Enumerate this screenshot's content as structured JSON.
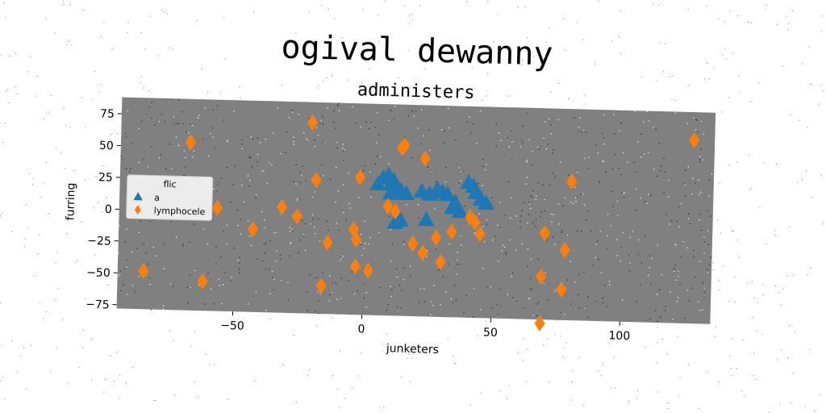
{
  "chart_data": {
    "type": "scatter",
    "title": "ogival dewanny",
    "subtitle": "administers",
    "xlabel": "junketers",
    "ylabel": "furring",
    "xlim": [
      -95,
      135
    ],
    "ylim": [
      -78,
      88
    ],
    "xticks": [
      -50,
      0,
      50,
      100
    ],
    "yticks": [
      -75,
      -50,
      -25,
      0,
      25,
      50,
      75
    ],
    "grid": false,
    "plot_background": "#808080",
    "legend": {
      "title": "flic",
      "placement": "center-left"
    },
    "series": [
      {
        "name": "a",
        "marker": "triangle",
        "color": "#1f77b4",
        "points": [
          [
            5,
            25
          ],
          [
            7,
            30
          ],
          [
            9,
            32
          ],
          [
            10,
            25
          ],
          [
            11,
            28
          ],
          [
            12,
            22
          ],
          [
            14,
            20
          ],
          [
            16,
            18
          ],
          [
            10,
            18
          ],
          [
            12,
            -5
          ],
          [
            14,
            -3
          ],
          [
            22,
            20
          ],
          [
            25,
            18
          ],
          [
            28,
            22
          ],
          [
            30,
            20
          ],
          [
            32,
            18
          ],
          [
            35,
            12
          ],
          [
            37,
            5
          ],
          [
            40,
            28
          ],
          [
            42,
            25
          ],
          [
            43,
            20
          ],
          [
            45,
            15
          ],
          [
            47,
            12
          ],
          [
            24,
            -2
          ],
          [
            34,
            8
          ]
        ]
      },
      {
        "name": "lymphocele",
        "marker": "diamond",
        "color": "#ff7f0e",
        "points": [
          [
            -85,
            -48
          ],
          [
            -68,
            54
          ],
          [
            -62,
            -55
          ],
          [
            -57,
            3
          ],
          [
            -43,
            -13
          ],
          [
            -32,
            5
          ],
          [
            -26,
            -2
          ],
          [
            -21,
            72
          ],
          [
            -19,
            27
          ],
          [
            -16,
            -56
          ],
          [
            -14,
            -22
          ],
          [
            -4,
            -11
          ],
          [
            -3,
            -19
          ],
          [
            -3,
            -40
          ],
          [
            -2,
            30
          ],
          [
            2,
            -43
          ],
          [
            9,
            8
          ],
          [
            12,
            4
          ],
          [
            14,
            54
          ],
          [
            15,
            56
          ],
          [
            23,
            46
          ],
          [
            19,
            -21
          ],
          [
            23,
            -28
          ],
          [
            28,
            -16
          ],
          [
            30,
            -35
          ],
          [
            34,
            -11
          ],
          [
            41,
            1
          ],
          [
            43,
            -3
          ],
          [
            45,
            -12
          ],
          [
            70,
            -10
          ],
          [
            69,
            -44
          ],
          [
            69,
            -81
          ],
          [
            78,
            -23
          ],
          [
            77,
            -54
          ],
          [
            80,
            31
          ],
          [
            127,
            66
          ]
        ]
      }
    ]
  }
}
